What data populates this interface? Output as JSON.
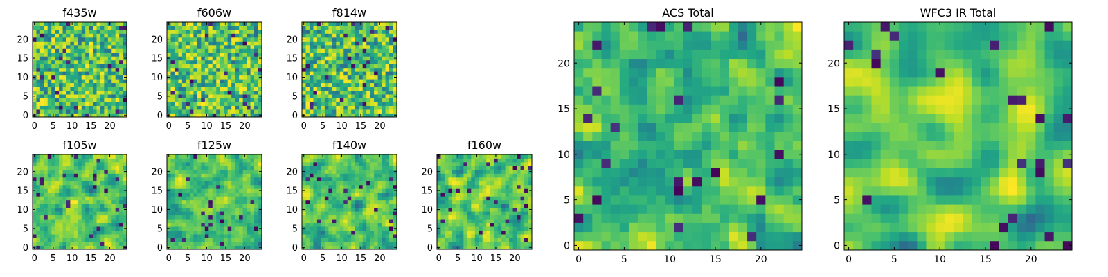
{
  "figure": {
    "background": "#ffffff",
    "colormap": "viridis"
  },
  "chart_data": [
    {
      "type": "heatmap",
      "title": "f435w",
      "grid_size": 25,
      "xlim": [
        -0.5,
        24.5
      ],
      "ylim": [
        -0.5,
        24.5
      ],
      "xticks": [
        0,
        5,
        10,
        15,
        20
      ],
      "yticks": [
        0,
        5,
        10,
        15,
        20
      ],
      "colormap": "viridis",
      "smoothness": 0,
      "seed": 11
    },
    {
      "type": "heatmap",
      "title": "f606w",
      "grid_size": 25,
      "xlim": [
        -0.5,
        24.5
      ],
      "ylim": [
        -0.5,
        24.5
      ],
      "xticks": [
        0,
        5,
        10,
        15,
        20
      ],
      "yticks": [
        0,
        5,
        10,
        15,
        20
      ],
      "colormap": "viridis",
      "smoothness": 0,
      "seed": 23
    },
    {
      "type": "heatmap",
      "title": "f814w",
      "grid_size": 25,
      "xlim": [
        -0.5,
        24.5
      ],
      "ylim": [
        -0.5,
        24.5
      ],
      "xticks": [
        0,
        5,
        10,
        15,
        20
      ],
      "yticks": [
        0,
        5,
        10,
        15,
        20
      ],
      "colormap": "viridis",
      "smoothness": 0,
      "seed": 37
    },
    {
      "type": "heatmap",
      "title": "f105w",
      "grid_size": 25,
      "xlim": [
        -0.5,
        24.5
      ],
      "ylim": [
        -0.5,
        24.5
      ],
      "xticks": [
        0,
        5,
        10,
        15,
        20
      ],
      "yticks": [
        0,
        5,
        10,
        15,
        20
      ],
      "colormap": "viridis",
      "smoothness": 1,
      "seed": 41
    },
    {
      "type": "heatmap",
      "title": "f125w",
      "grid_size": 25,
      "xlim": [
        -0.5,
        24.5
      ],
      "ylim": [
        -0.5,
        24.5
      ],
      "xticks": [
        0,
        5,
        10,
        15,
        20
      ],
      "yticks": [
        0,
        5,
        10,
        15,
        20
      ],
      "colormap": "viridis",
      "smoothness": 1,
      "seed": 53
    },
    {
      "type": "heatmap",
      "title": "f140w",
      "grid_size": 25,
      "xlim": [
        -0.5,
        24.5
      ],
      "ylim": [
        -0.5,
        24.5
      ],
      "xticks": [
        0,
        5,
        10,
        15,
        20
      ],
      "yticks": [
        0,
        5,
        10,
        15,
        20
      ],
      "colormap": "viridis",
      "smoothness": 1,
      "seed": 67
    },
    {
      "type": "heatmap",
      "title": "f160w",
      "grid_size": 25,
      "xlim": [
        -0.5,
        24.5
      ],
      "ylim": [
        -0.5,
        24.5
      ],
      "xticks": [
        0,
        5,
        10,
        15,
        20
      ],
      "yticks": [
        0,
        5,
        10,
        15,
        20
      ],
      "colormap": "viridis",
      "smoothness": 1,
      "seed": 71
    },
    {
      "type": "heatmap",
      "title": "ACS Total",
      "grid_size": 25,
      "xlim": [
        -0.5,
        24.5
      ],
      "ylim": [
        -0.5,
        24.5
      ],
      "xticks": [
        0,
        5,
        10,
        15,
        20
      ],
      "yticks": [
        0,
        5,
        10,
        15,
        20
      ],
      "colormap": "viridis",
      "smoothness": 1,
      "seed": 83
    },
    {
      "type": "heatmap",
      "title": "WFC3 IR Total",
      "grid_size": 25,
      "xlim": [
        -0.5,
        24.5
      ],
      "ylim": [
        -0.5,
        24.5
      ],
      "xticks": [
        0,
        5,
        10,
        15,
        20
      ],
      "yticks": [
        0,
        5,
        10,
        15,
        20
      ],
      "colormap": "viridis",
      "smoothness": 2,
      "seed": 97
    }
  ]
}
